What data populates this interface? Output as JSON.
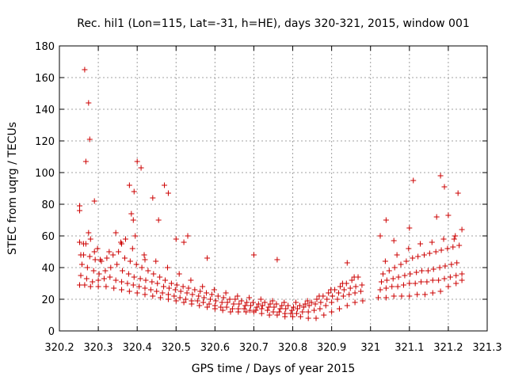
{
  "chart_data": {
    "type": "scatter",
    "title": "Rec. hil1 (Lon=115, Lat=-31, h=HE), days 320-321, 2015, window 001",
    "xlabel": "GPS time / Days of year 2015",
    "ylabel": "STEC from uqrg / TECUs",
    "xlim": [
      320.2,
      321.3
    ],
    "ylim": [
      0,
      180
    ],
    "xticks": [
      320.2,
      320.3,
      320.4,
      320.5,
      320.6,
      320.7,
      320.8,
      320.9,
      321.0,
      321.1,
      321.2,
      321.3
    ],
    "xtick_labels": [
      "320.2",
      "320.3",
      "320.4",
      "320.5",
      "320.6",
      "320.7",
      "320.8",
      "320.9",
      "321",
      "321.1",
      "321.2",
      "321.3"
    ],
    "yticks": [
      0,
      20,
      40,
      60,
      80,
      100,
      120,
      140,
      160,
      180
    ],
    "ytick_labels": [
      "0",
      "20",
      "40",
      "60",
      "80",
      "100",
      "120",
      "140",
      "160",
      "180"
    ],
    "grid": true,
    "marker": "+",
    "color": "#cc0000",
    "series": [
      {
        "x": [
          320.252,
          320.252,
          320.252,
          320.265,
          320.268,
          320.275,
          320.278,
          320.29,
          320.255,
          320.262,
          320.275,
          320.28,
          320.29,
          320.305,
          320.345,
          320.36,
          320.37,
          320.38,
          320.385,
          320.39,
          320.392,
          320.395,
          320.4,
          320.41,
          320.42,
          320.44,
          320.455,
          320.47,
          320.48,
          320.5,
          320.52,
          320.53,
          320.58,
          320.7,
          320.76,
          320.94,
          321.025,
          321.04,
          321.06,
          321.1,
          321.11,
          321.17,
          321.18,
          321.19,
          321.2,
          321.215,
          321.225,
          321.235
        ],
        "y": [
          79,
          76,
          56,
          165,
          107,
          144,
          121,
          82,
          48,
          55,
          62,
          58,
          50,
          45,
          62,
          55,
          58,
          92,
          74,
          70,
          88,
          60,
          107,
          103,
          45,
          84,
          70,
          92,
          87,
          58,
          56,
          60,
          46,
          48,
          45,
          43,
          60,
          70,
          57,
          65,
          95,
          72,
          98,
          91,
          73,
          58,
          87,
          64
        ]
      },
      {
        "x": [
          320.252,
          320.265,
          320.28,
          320.3,
          320.32,
          320.34,
          320.36,
          320.38,
          320.4,
          320.42,
          320.44,
          320.46,
          320.48,
          320.5,
          320.52,
          320.54,
          320.56,
          320.58,
          320.6,
          320.62,
          320.64,
          320.66,
          320.68,
          320.7,
          320.72,
          320.74,
          320.76,
          320.78,
          320.8,
          320.82,
          320.84,
          320.86,
          320.88,
          320.9,
          320.92,
          320.94,
          320.96,
          320.98,
          321.02,
          321.04,
          321.06,
          321.08,
          321.1,
          321.12,
          321.14,
          321.16,
          321.18,
          321.2,
          321.22,
          321.235
        ],
        "y": [
          29,
          29,
          28,
          28,
          28,
          27,
          26,
          25,
          24,
          23,
          22,
          21,
          20,
          19,
          18,
          17,
          16,
          15,
          14,
          13,
          12,
          12,
          12,
          12,
          11,
          10,
          10,
          9,
          9,
          9,
          8,
          8,
          10,
          12,
          14,
          16,
          18,
          19,
          21,
          21,
          22,
          22,
          22,
          23,
          23,
          24,
          25,
          28,
          30,
          32
        ]
      },
      {
        "x": [
          320.255,
          320.27,
          320.285,
          320.3,
          320.315,
          320.33,
          320.345,
          320.36,
          320.375,
          320.39,
          320.405,
          320.42,
          320.435,
          320.45,
          320.465,
          320.48,
          320.495,
          320.51,
          320.525,
          320.54,
          320.555,
          320.57,
          320.585,
          320.6,
          320.615,
          320.63,
          320.645,
          320.66,
          320.675,
          320.69,
          320.705,
          320.72,
          320.735,
          320.75,
          320.765,
          320.78,
          320.795,
          320.81,
          320.825,
          320.84,
          320.855,
          320.87,
          320.885,
          320.9,
          320.915,
          320.93,
          320.945,
          320.96,
          320.975,
          321.025,
          321.04,
          321.055,
          321.07,
          321.085,
          321.1,
          321.115,
          321.13,
          321.145,
          321.16,
          321.175,
          321.19,
          321.205,
          321.22,
          321.235
        ],
        "y": [
          35,
          33,
          31,
          32,
          33,
          34,
          32,
          31,
          30,
          29,
          28,
          27,
          26,
          25,
          24,
          23,
          22,
          21,
          20,
          19,
          19,
          18,
          17,
          16,
          15,
          15,
          14,
          14,
          14,
          13,
          13,
          14,
          13,
          12,
          12,
          11,
          11,
          11,
          12,
          12,
          13,
          14,
          16,
          18,
          20,
          22,
          23,
          24,
          25,
          26,
          27,
          28,
          28,
          29,
          30,
          30,
          31,
          31,
          32,
          32,
          33,
          34,
          35,
          36
        ]
      },
      {
        "x": [
          320.258,
          320.272,
          320.288,
          320.302,
          320.318,
          320.332,
          320.348,
          320.362,
          320.378,
          320.392,
          320.408,
          320.422,
          320.438,
          320.452,
          320.468,
          320.482,
          320.498,
          320.512,
          320.528,
          320.542,
          320.558,
          320.572,
          320.588,
          320.602,
          320.618,
          320.632,
          320.648,
          320.662,
          320.678,
          320.692,
          320.708,
          320.722,
          320.738,
          320.752,
          320.768,
          320.782,
          320.798,
          320.812,
          320.828,
          320.842,
          320.858,
          320.872,
          320.888,
          320.902,
          320.918,
          320.932,
          320.948,
          320.962,
          320.978,
          321.028,
          321.042,
          321.058,
          321.072,
          321.088,
          321.102,
          321.118,
          321.132,
          321.148,
          321.162,
          321.178,
          321.192,
          321.208,
          321.222
        ],
        "y": [
          42,
          40,
          38,
          36,
          38,
          40,
          42,
          38,
          36,
          34,
          33,
          32,
          31,
          30,
          28,
          27,
          26,
          25,
          24,
          23,
          22,
          21,
          20,
          19,
          18,
          18,
          17,
          17,
          16,
          16,
          15,
          16,
          15,
          15,
          14,
          14,
          13,
          14,
          15,
          16,
          17,
          18,
          20,
          22,
          24,
          26,
          27,
          28,
          29,
          31,
          32,
          33,
          34,
          35,
          36,
          37,
          38,
          38,
          39,
          40,
          41,
          42,
          43
        ]
      },
      {
        "x": [
          320.262,
          320.278,
          320.292,
          320.308,
          320.322,
          320.338,
          320.352,
          320.368,
          320.382,
          320.398,
          320.412,
          320.428,
          320.442,
          320.458,
          320.472,
          320.488,
          320.502,
          320.518,
          320.532,
          320.548,
          320.562,
          320.578,
          320.592,
          320.608,
          320.622,
          320.638,
          320.652,
          320.668,
          320.682,
          320.698,
          320.712,
          320.728,
          320.742,
          320.758,
          320.772,
          320.788,
          320.802,
          320.818,
          320.832,
          320.848,
          320.862,
          320.878,
          320.892,
          320.908,
          320.922,
          320.938,
          320.952,
          320.968,
          321.032,
          321.048,
          321.062,
          321.078,
          321.092,
          321.108,
          321.122,
          321.138,
          321.152,
          321.168,
          321.182,
          321.198,
          321.212,
          321.228
        ],
        "y": [
          48,
          47,
          45,
          44,
          46,
          48,
          50,
          46,
          44,
          42,
          40,
          38,
          36,
          34,
          32,
          30,
          29,
          28,
          27,
          26,
          25,
          24,
          23,
          22,
          21,
          20,
          20,
          19,
          18,
          18,
          17,
          18,
          17,
          17,
          16,
          16,
          15,
          16,
          17,
          18,
          20,
          22,
          24,
          26,
          28,
          30,
          32,
          34,
          36,
          38,
          40,
          42,
          44,
          46,
          47,
          48,
          49,
          50,
          51,
          52,
          53,
          54
        ]
      },
      {
        "x": [
          320.268,
          320.298,
          320.328,
          320.358,
          320.388,
          320.418,
          320.448,
          320.478,
          320.508,
          320.538,
          320.568,
          320.598,
          320.628,
          320.658,
          320.688,
          320.718,
          320.748,
          320.778,
          320.808,
          320.838,
          320.868,
          320.898,
          320.928,
          320.958,
          321.038,
          321.068,
          321.098,
          321.128,
          321.158,
          321.188,
          321.218
        ],
        "y": [
          55,
          52,
          50,
          56,
          52,
          48,
          44,
          40,
          36,
          32,
          28,
          26,
          24,
          22,
          21,
          20,
          19,
          18,
          18,
          19,
          22,
          26,
          30,
          34,
          44,
          48,
          52,
          55,
          56,
          58,
          60
        ]
      }
    ]
  }
}
